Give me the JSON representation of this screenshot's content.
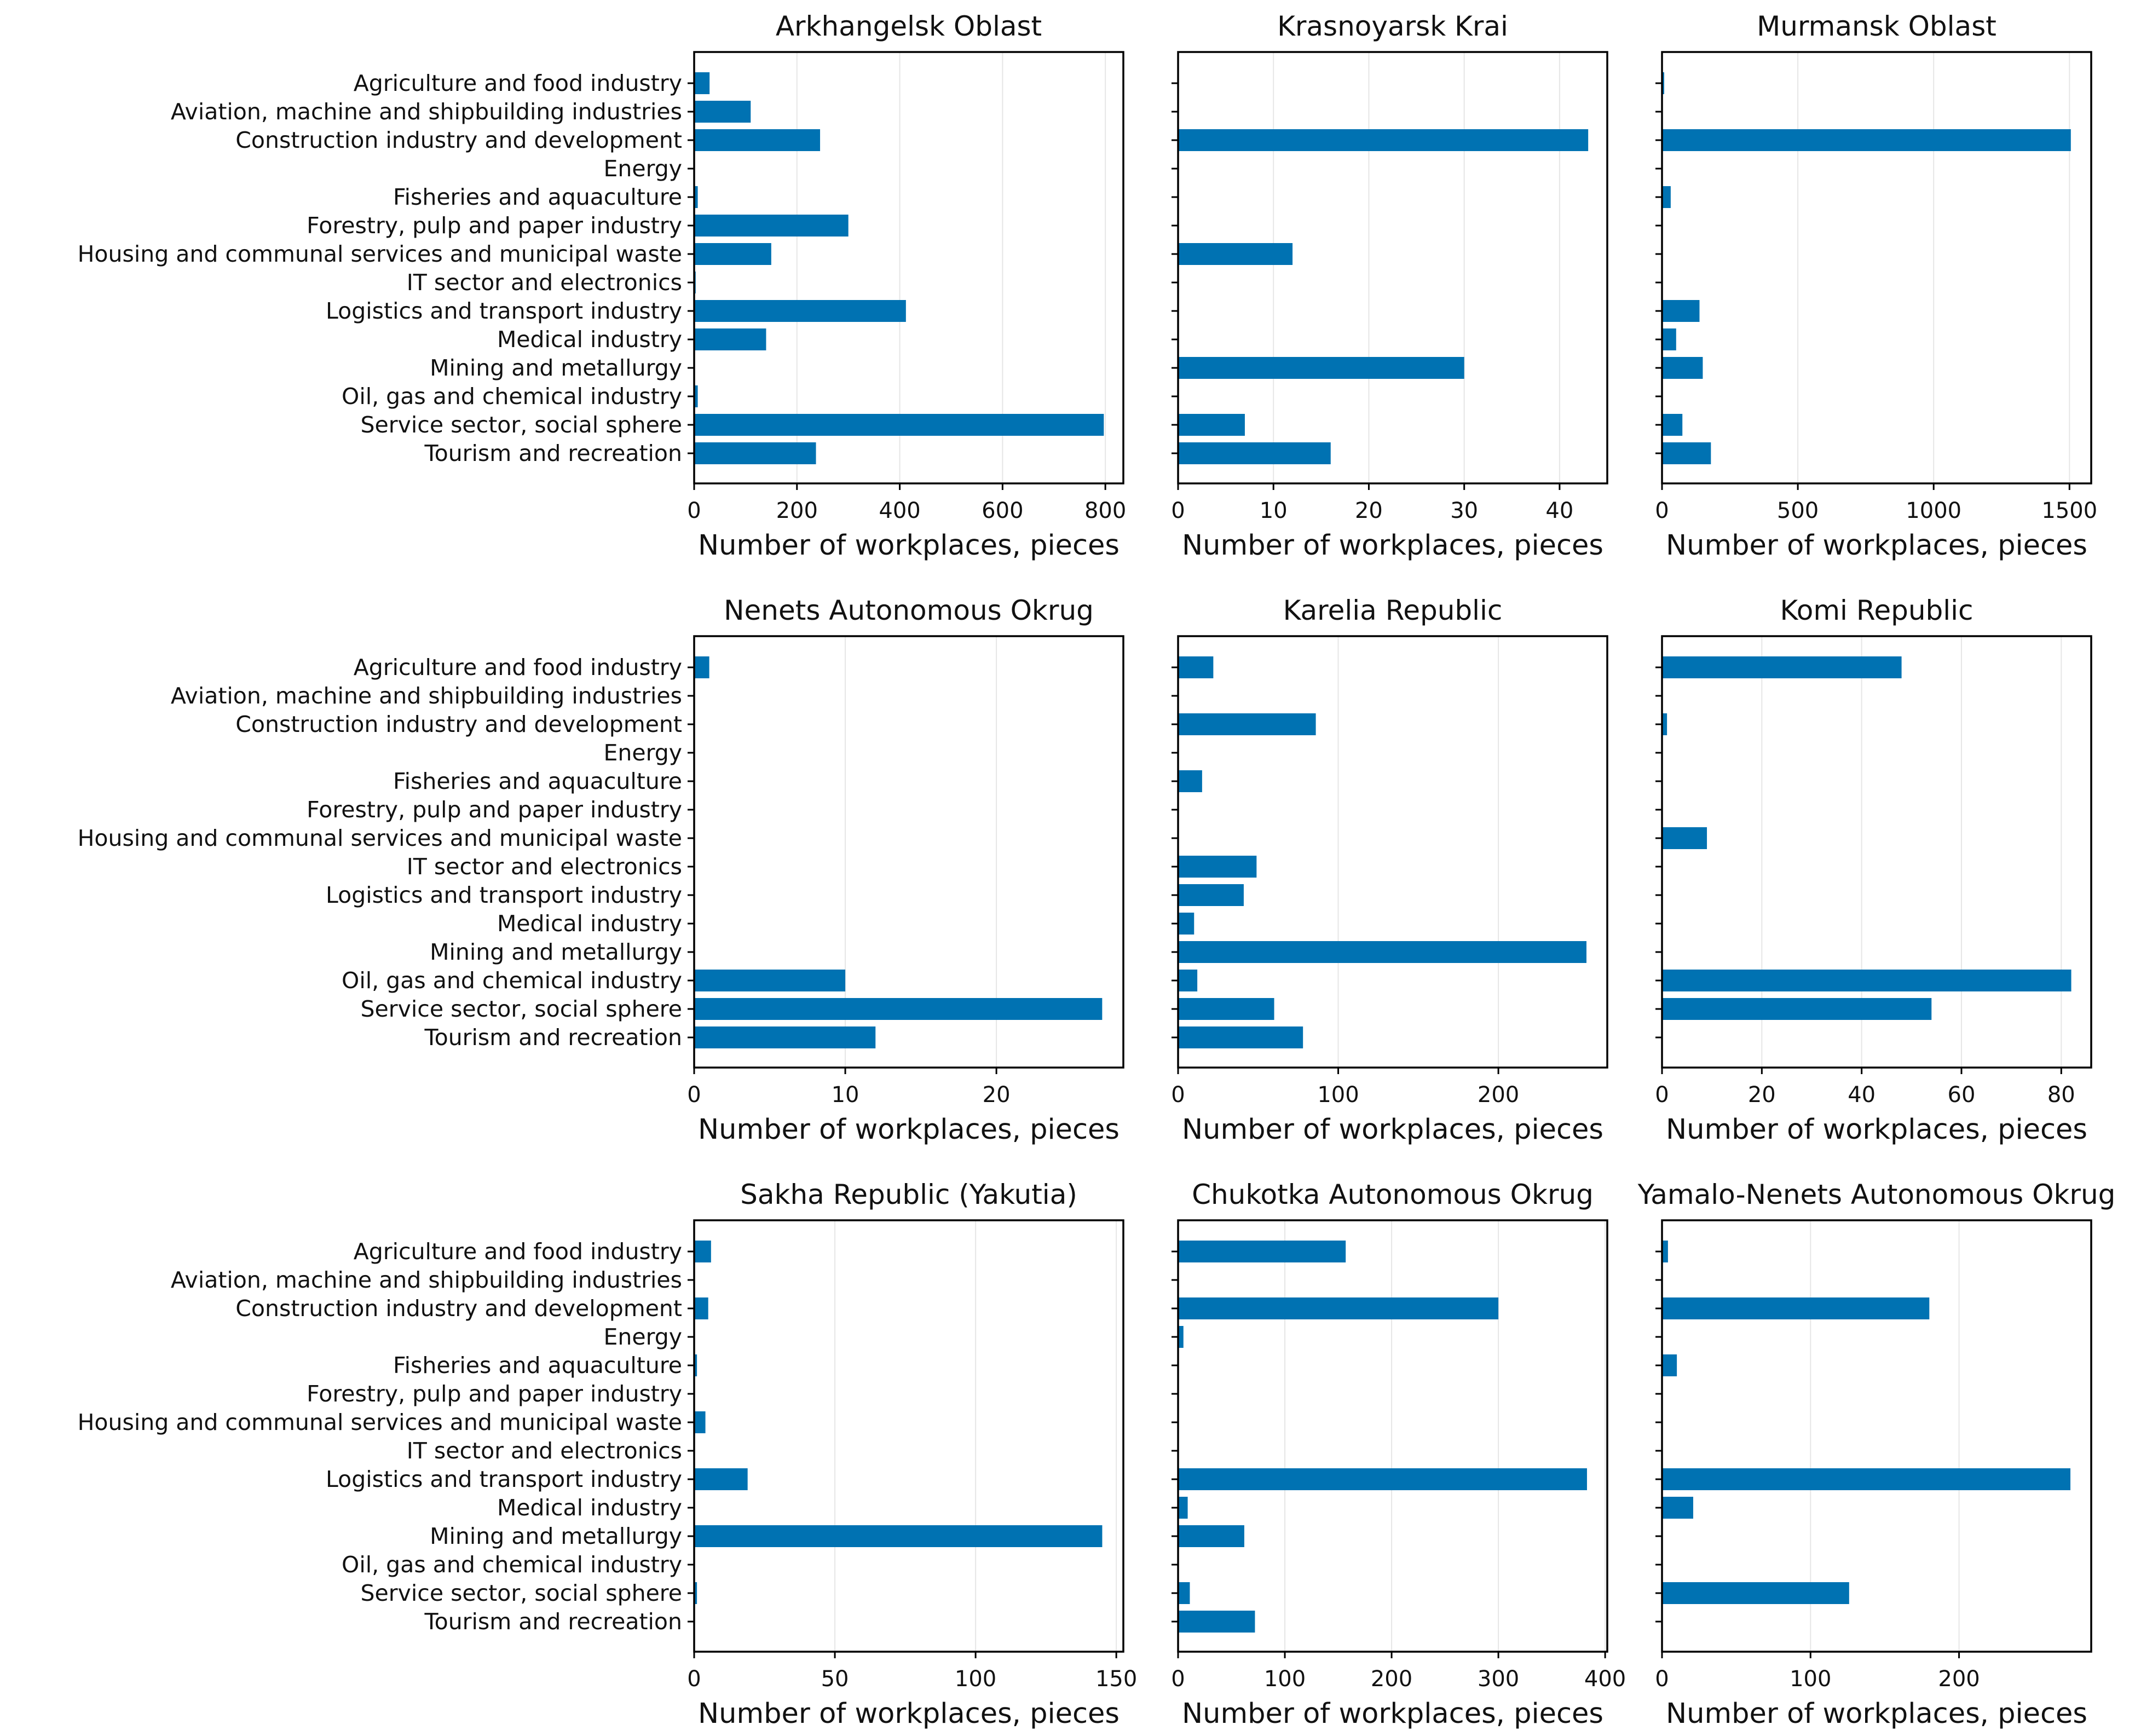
{
  "chart_data": {
    "type": "bar",
    "orientation": "horizontal",
    "layout": "3x3 grid of subplots",
    "bar_color": "#0072B2",
    "xlabel": "Number of workplaces, pieces",
    "categories": [
      "Agriculture and food industry",
      "Aviation, machine and shipbuilding industries",
      "Construction industry and development",
      "Energy",
      "Fisheries and aquaculture",
      "Forestry, pulp and paper industry",
      "Housing and communal services and municipal waste",
      "IT sector and electronics",
      "Logistics and transport industry",
      "Medical industry",
      "Mining and metallurgy",
      "Oil, gas and chemical industry",
      "Service sector, social sphere",
      "Tourism and recreation"
    ],
    "panels": [
      {
        "title": "Arkhangelsk Oblast",
        "xlim": [
          0,
          835
        ],
        "ticks": [
          0,
          200,
          400,
          600,
          800
        ],
        "values": [
          30,
          110,
          245,
          0,
          7,
          300,
          150,
          3,
          412,
          140,
          0,
          7,
          797,
          237
        ]
      },
      {
        "title": "Krasnoyarsk Krai",
        "xlim": [
          0,
          45
        ],
        "ticks": [
          0,
          10,
          20,
          30,
          40
        ],
        "values": [
          0,
          0,
          43,
          0,
          0,
          0,
          12,
          0,
          0,
          0,
          30,
          0,
          7,
          16
        ]
      },
      {
        "title": "Murmansk Oblast",
        "xlim": [
          0,
          1580
        ],
        "ticks": [
          0,
          500,
          1000,
          1500
        ],
        "values": [
          8,
          0,
          1505,
          0,
          32,
          0,
          0,
          0,
          138,
          52,
          150,
          0,
          75,
          180
        ]
      },
      {
        "title": "Nenets Autonomous Okrug",
        "xlim": [
          0,
          28.4
        ],
        "ticks": [
          0,
          10,
          20
        ],
        "values": [
          1,
          0,
          0,
          0,
          0,
          0,
          0,
          0,
          0,
          0,
          0,
          10,
          27,
          12
        ]
      },
      {
        "title": "Karelia Republic",
        "xlim": [
          0,
          268
        ],
        "ticks": [
          0,
          100,
          200
        ],
        "values": [
          22,
          0,
          86,
          0,
          15,
          0,
          0,
          49,
          41,
          10,
          255,
          12,
          60,
          78
        ]
      },
      {
        "title": "Komi Republic",
        "xlim": [
          0,
          86
        ],
        "ticks": [
          0,
          20,
          40,
          60,
          80
        ],
        "values": [
          48,
          0,
          1,
          0,
          0,
          0,
          9,
          0,
          0,
          0,
          0,
          82,
          54,
          0
        ]
      },
      {
        "title": "Sakha Republic (Yakutia)",
        "xlim": [
          0,
          152.5
        ],
        "ticks": [
          0,
          50,
          100,
          150
        ],
        "values": [
          6,
          0,
          5,
          0,
          1,
          0,
          4,
          0,
          19,
          0,
          145,
          0,
          1,
          0
        ]
      },
      {
        "title": "Chukotka Autonomous Okrug",
        "xlim": [
          0,
          402
        ],
        "ticks": [
          0,
          100,
          200,
          300,
          400
        ],
        "values": [
          157,
          0,
          300,
          5,
          0,
          0,
          0,
          0,
          383,
          9,
          62,
          0,
          11,
          72
        ]
      },
      {
        "title": "Yamalo-Nenets Autonomous Okrug",
        "xlim": [
          0,
          289
        ],
        "ticks": [
          0,
          100,
          200
        ],
        "values": [
          4,
          0,
          180,
          0,
          10,
          0,
          0,
          0,
          275,
          21,
          0,
          0,
          126,
          0
        ]
      }
    ]
  }
}
